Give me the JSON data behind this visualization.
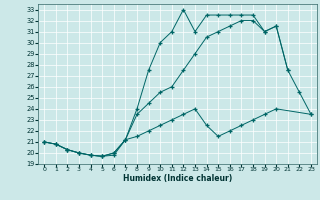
{
  "xlabel": "Humidex (Indice chaleur)",
  "bg_color": "#cce8e8",
  "grid_color": "#ffffff",
  "line_color": "#006666",
  "xlim": [
    -0.5,
    23.5
  ],
  "ylim": [
    19.0,
    33.5
  ],
  "xticks": [
    0,
    1,
    2,
    3,
    4,
    5,
    6,
    7,
    8,
    9,
    10,
    11,
    12,
    13,
    14,
    15,
    16,
    17,
    18,
    19,
    20,
    21,
    22,
    23
  ],
  "yticks": [
    19,
    20,
    21,
    22,
    23,
    24,
    25,
    26,
    27,
    28,
    29,
    30,
    31,
    32,
    33
  ],
  "curve_upper_x": [
    0,
    1,
    2,
    3,
    4,
    5,
    6,
    7,
    8,
    9,
    10,
    11,
    12,
    13,
    14,
    15,
    16,
    17,
    18,
    19,
    20,
    21
  ],
  "curve_upper_y": [
    21.0,
    20.8,
    20.3,
    20.0,
    19.8,
    19.7,
    19.8,
    21.2,
    24.0,
    27.5,
    30.0,
    31.0,
    33.0,
    31.0,
    32.5,
    32.5,
    32.5,
    32.5,
    32.5,
    31.0,
    31.5,
    27.5
  ],
  "curve_mid_x": [
    0,
    1,
    2,
    3,
    4,
    5,
    6,
    7,
    8,
    9,
    10,
    11,
    12,
    13,
    14,
    15,
    16,
    17,
    18,
    19,
    20,
    21,
    22,
    23
  ],
  "curve_mid_y": [
    21.0,
    20.8,
    20.3,
    20.0,
    19.8,
    19.7,
    20.0,
    21.2,
    23.5,
    24.5,
    25.5,
    26.0,
    27.5,
    29.0,
    30.5,
    31.0,
    31.5,
    32.0,
    32.0,
    31.0,
    31.5,
    27.5,
    25.5,
    23.5
  ],
  "curve_lower_x": [
    0,
    1,
    2,
    3,
    4,
    5,
    6,
    7,
    8,
    9,
    10,
    11,
    12,
    13,
    14,
    15,
    16,
    17,
    18,
    19,
    20,
    23
  ],
  "curve_lower_y": [
    21.0,
    20.8,
    20.3,
    20.0,
    19.8,
    19.7,
    20.0,
    21.2,
    21.5,
    22.0,
    22.5,
    23.0,
    23.5,
    24.0,
    22.5,
    21.5,
    22.0,
    22.5,
    23.0,
    23.5,
    24.0,
    23.5
  ]
}
